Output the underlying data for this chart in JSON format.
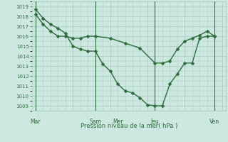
{
  "xlabel": "Pression niveau de la mer( hPa )",
  "background_color": "#cce8e0",
  "grid_color": "#aacfc5",
  "line_color": "#2d6b3a",
  "ylim": [
    1008.5,
    1019.5
  ],
  "yticks": [
    1009,
    1010,
    1011,
    1012,
    1013,
    1014,
    1015,
    1016,
    1017,
    1018,
    1019
  ],
  "day_labels": [
    "Mar",
    "Sam",
    "Mer",
    "Jeu",
    "Ven"
  ],
  "series1_x": [
    0,
    1,
    2,
    3,
    4,
    5,
    6,
    7,
    8,
    9,
    10,
    11,
    12,
    13,
    14,
    15,
    16,
    17,
    18,
    19,
    20,
    21,
    22,
    23,
    24
  ],
  "series1_y": [
    1018.7,
    1017.8,
    1017.2,
    1016.8,
    1016.3,
    1015.0,
    1014.7,
    1014.5,
    1014.5,
    1013.2,
    1012.5,
    1011.2,
    1010.5,
    1010.3,
    1009.8,
    1009.1,
    1009.0,
    1009.0,
    1011.2,
    1012.2,
    1013.3,
    1013.3,
    1015.8,
    1016.0,
    1016.0
  ],
  "series2_x": [
    0,
    1,
    2,
    3,
    4,
    5,
    6,
    7,
    8,
    10,
    12,
    14,
    16,
    17,
    18,
    19,
    20,
    21,
    22,
    23,
    24
  ],
  "series2_y": [
    1018.2,
    1017.2,
    1016.5,
    1016.0,
    1016.0,
    1015.8,
    1015.8,
    1016.0,
    1016.0,
    1015.8,
    1015.3,
    1014.8,
    1013.3,
    1013.3,
    1013.5,
    1014.7,
    1015.5,
    1015.8,
    1016.1,
    1016.5,
    1016.0
  ],
  "marker_size": 2.5,
  "line_width": 1.0
}
